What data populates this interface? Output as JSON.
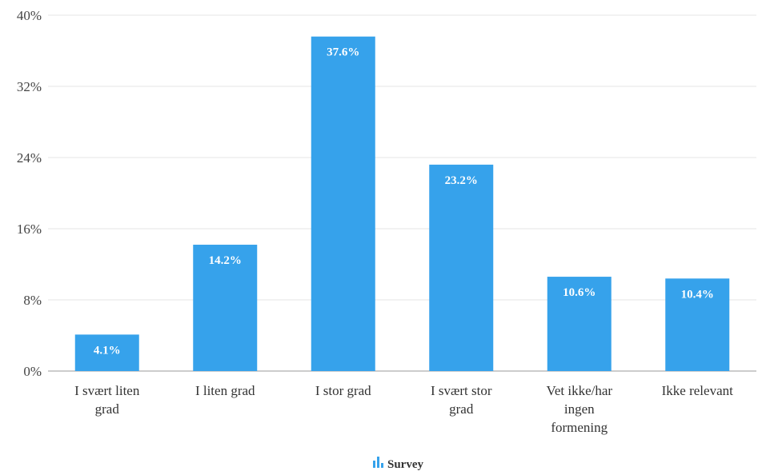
{
  "chart_data": {
    "type": "bar",
    "title": "",
    "xlabel": "",
    "ylabel": "",
    "categories": [
      [
        "I svært liten",
        "grad"
      ],
      [
        "I liten grad"
      ],
      [
        "I stor grad"
      ],
      [
        "I svært stor",
        "grad"
      ],
      [
        "Vet ikke/har",
        "ingen",
        "formening"
      ],
      [
        "Ikke relevant"
      ]
    ],
    "series": [
      {
        "name": "Survey",
        "values": [
          4.1,
          14.2,
          37.6,
          23.2,
          10.6,
          10.4
        ],
        "data_labels": [
          "4.1%",
          "14.2%",
          "37.6%",
          "23.2%",
          "10.6%",
          "10.4%"
        ]
      }
    ],
    "ylim": [
      0,
      40
    ],
    "yticks": [
      0,
      8,
      16,
      24,
      32,
      40
    ],
    "ytick_labels": [
      "0%",
      "8%",
      "16%",
      "24%",
      "32%",
      "40%"
    ],
    "grid": true,
    "legend_position": "bottom-center",
    "bar_color": "#36a2eb",
    "grid_color": "#e6e6e6",
    "axis_color": "#999999"
  },
  "legend": {
    "label": "Survey",
    "icon": "bar-chart-icon"
  }
}
